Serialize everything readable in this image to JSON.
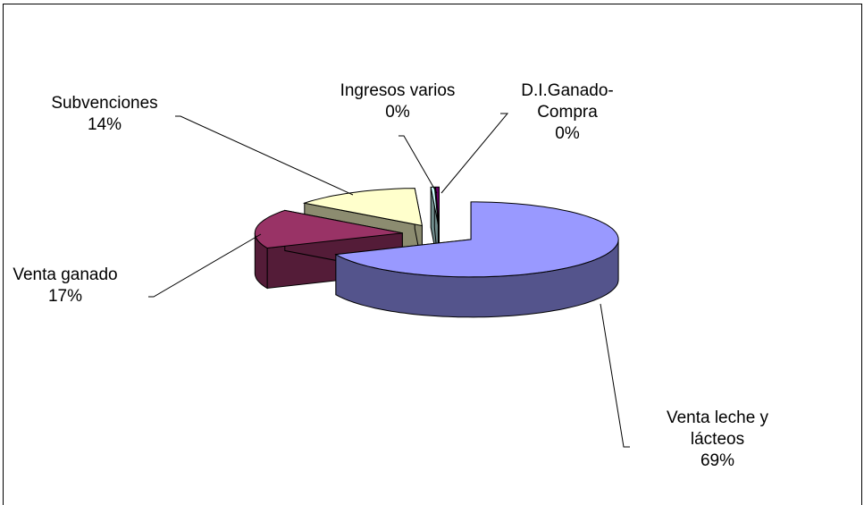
{
  "chart_data": {
    "type": "pie",
    "categories": [
      "Venta leche y lácteos",
      "Venta ganado",
      "Subvenciones",
      "Ingresos varios",
      "D.I.Ganado-Compra"
    ],
    "values": [
      69,
      17,
      14,
      0.4,
      0.4
    ],
    "value_labels": [
      "69%",
      "17%",
      "14%",
      "0%",
      "0%"
    ],
    "colors": [
      "#9999ff",
      "#993366",
      "#ffffcc",
      "#ccffff",
      "#660066"
    ]
  }
}
